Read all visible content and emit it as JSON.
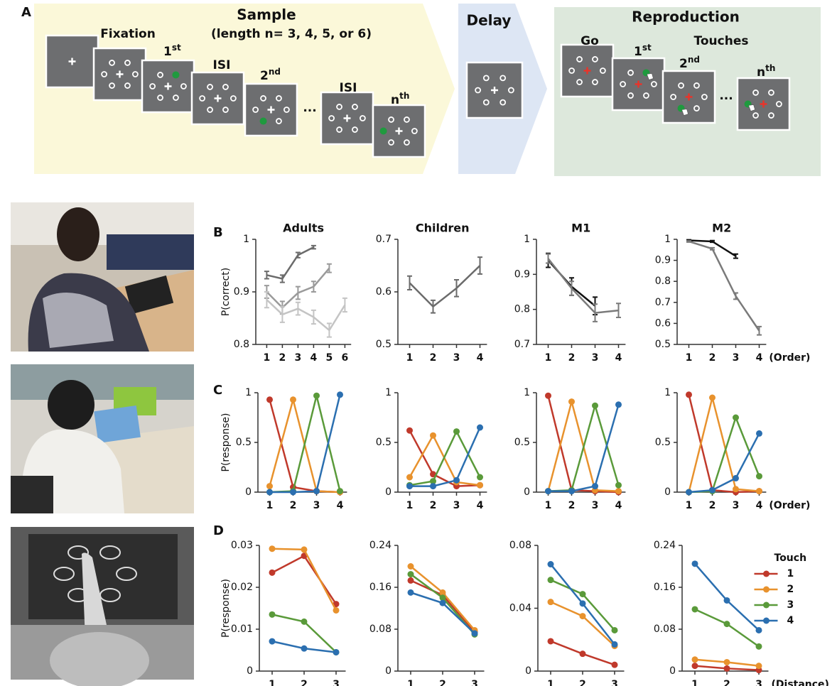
{
  "diagram": {
    "panel": "A",
    "sample": "Sample",
    "length": "(length n= 3, 4, 5, or 6)",
    "fixation": "Fixation",
    "first": {
      "base": "1",
      "sup": "st"
    },
    "isi": "ISI",
    "second": {
      "base": "2",
      "sup": "nd"
    },
    "ellipsis": "...",
    "nth": {
      "base": "n",
      "sup": "th"
    },
    "delay": "Delay",
    "reproduction": "Reproduction",
    "go": "Go",
    "touches": "Touches"
  },
  "panel_labels": [
    "B",
    "C",
    "D"
  ],
  "chart_data": [
    {
      "type": "line",
      "title": "Adults",
      "ylabel": "P(correct)",
      "x": [
        1,
        2,
        3,
        4,
        5,
        6
      ],
      "xlim": [
        0.3,
        6.4
      ],
      "xticks": [
        1,
        2,
        3,
        4,
        5,
        6
      ],
      "ylim": [
        0.8,
        1
      ],
      "yticks": [
        0.8,
        0.9,
        1
      ],
      "series": [
        {
          "color": "#6b6b6b",
          "values": [
            0.932,
            0.925,
            0.97,
            0.985,
            null,
            null
          ],
          "errors": [
            0.007,
            0.007,
            0.005,
            0.003,
            null,
            null
          ]
        },
        {
          "color": "#9a9a9a",
          "values": [
            0.9,
            0.87,
            0.898,
            0.91,
            0.945,
            null
          ],
          "errors": [
            0.012,
            0.012,
            0.012,
            0.01,
            0.008,
            null
          ]
        },
        {
          "color": "#c4c4c4",
          "values": [
            0.885,
            0.857,
            0.868,
            0.852,
            0.827,
            0.875
          ],
          "errors": [
            0.015,
            0.015,
            0.012,
            0.013,
            0.013,
            0.013
          ]
        }
      ]
    },
    {
      "type": "line",
      "title": "Children",
      "x": [
        1,
        2,
        3,
        4
      ],
      "xlim": [
        0.5,
        4.3
      ],
      "xticks": [
        1,
        2,
        3,
        4
      ],
      "ylim": [
        0.5,
        0.7
      ],
      "yticks": [
        0.5,
        0.6,
        0.7
      ],
      "series": [
        {
          "color": "#6b6b6b",
          "values": [
            0.617,
            0.572,
            0.607,
            0.65
          ],
          "errors": [
            0.013,
            0.012,
            0.016,
            0.016
          ]
        }
      ]
    },
    {
      "type": "line",
      "title": "M1",
      "x": [
        1,
        2,
        3,
        4
      ],
      "xlim": [
        0.5,
        4.3
      ],
      "xticks": [
        1,
        2,
        3,
        4
      ],
      "ylim": [
        0.7,
        1
      ],
      "yticks": [
        0.7,
        0.8,
        0.9,
        1
      ],
      "series": [
        {
          "color": "#111111",
          "values": [
            0.94,
            0.865,
            0.81,
            null
          ],
          "errors": [
            0.02,
            0.025,
            0.025,
            null
          ]
        },
        {
          "color": "#7a7a7a",
          "values": [
            0.945,
            0.86,
            0.79,
            0.797
          ],
          "errors": [
            0.013,
            0.02,
            0.025,
            0.02
          ]
        }
      ]
    },
    {
      "type": "line",
      "title": "M2",
      "xlabel": "(Order)",
      "x": [
        1,
        2,
        3,
        4
      ],
      "xlim": [
        0.5,
        4.3
      ],
      "xticks": [
        1,
        2,
        3,
        4
      ],
      "ylim": [
        0.5,
        1
      ],
      "yticks": [
        0.5,
        0.6,
        0.7,
        0.8,
        0.9,
        1
      ],
      "series": [
        {
          "color": "#111111",
          "values": [
            0.995,
            0.99,
            0.92,
            null
          ],
          "errors": [
            0.003,
            0.004,
            0.01,
            null
          ]
        },
        {
          "color": "#7a7a7a",
          "values": [
            0.99,
            0.955,
            0.73,
            0.565
          ],
          "errors": [
            0.003,
            0.005,
            0.015,
            0.02
          ]
        }
      ]
    },
    {
      "type": "line",
      "ylabel": "P(response)",
      "x": [
        1,
        2,
        3,
        4
      ],
      "xlim": [
        0.5,
        4.3
      ],
      "xticks": [
        1,
        2,
        3,
        4
      ],
      "ylim": [
        0,
        1
      ],
      "yticks": [
        0,
        0.5,
        1
      ],
      "markers": true,
      "series": [
        {
          "color": "#c0392b",
          "values": [
            0.93,
            0.05,
            0.01,
            0
          ]
        },
        {
          "color": "#e8922d",
          "values": [
            0.06,
            0.93,
            0.01,
            0
          ]
        },
        {
          "color": "#5a9a3a",
          "values": [
            0,
            0.01,
            0.97,
            0.01
          ]
        },
        {
          "color": "#2b6fb0",
          "values": [
            0,
            0,
            0.01,
            0.98
          ]
        }
      ]
    },
    {
      "type": "line",
      "x": [
        1,
        2,
        3,
        4
      ],
      "xlim": [
        0.5,
        4.3
      ],
      "xticks": [
        1,
        2,
        3,
        4
      ],
      "ylim": [
        0,
        1
      ],
      "yticks": [
        0,
        0.5,
        1
      ],
      "markers": true,
      "series": [
        {
          "color": "#c0392b",
          "values": [
            0.62,
            0.18,
            0.06,
            0.07
          ]
        },
        {
          "color": "#e8922d",
          "values": [
            0.15,
            0.57,
            0.1,
            0.07
          ]
        },
        {
          "color": "#5a9a3a",
          "values": [
            0.07,
            0.11,
            0.61,
            0.15
          ]
        },
        {
          "color": "#2b6fb0",
          "values": [
            0.06,
            0.06,
            0.12,
            0.65
          ]
        }
      ]
    },
    {
      "type": "line",
      "x": [
        1,
        2,
        3,
        4
      ],
      "xlim": [
        0.5,
        4.3
      ],
      "xticks": [
        1,
        2,
        3,
        4
      ],
      "ylim": [
        0,
        1
      ],
      "yticks": [
        0,
        0.5,
        1
      ],
      "markers": true,
      "series": [
        {
          "color": "#c0392b",
          "values": [
            0.97,
            0.02,
            0.01,
            0
          ]
        },
        {
          "color": "#e8922d",
          "values": [
            0.01,
            0.91,
            0.02,
            0.01
          ]
        },
        {
          "color": "#5a9a3a",
          "values": [
            0.01,
            0.02,
            0.87,
            0.07
          ]
        },
        {
          "color": "#2b6fb0",
          "values": [
            0.01,
            0.01,
            0.06,
            0.88
          ]
        }
      ]
    },
    {
      "type": "line",
      "xlabel": "(Order)",
      "x": [
        1,
        2,
        3,
        4
      ],
      "xlim": [
        0.5,
        4.3
      ],
      "xticks": [
        1,
        2,
        3,
        4
      ],
      "ylim": [
        0,
        1
      ],
      "yticks": [
        0,
        0.5,
        1
      ],
      "markers": true,
      "series": [
        {
          "color": "#c0392b",
          "values": [
            0.98,
            0.02,
            0,
            0.01
          ]
        },
        {
          "color": "#e8922d",
          "values": [
            0,
            0.95,
            0.03,
            0.01
          ]
        },
        {
          "color": "#5a9a3a",
          "values": [
            0,
            0.01,
            0.75,
            0.16
          ]
        },
        {
          "color": "#2b6fb0",
          "values": [
            0,
            0.02,
            0.14,
            0.59
          ]
        }
      ]
    },
    {
      "type": "line",
      "ylabel": "P(response)",
      "x": [
        1,
        2,
        3
      ],
      "xlim": [
        0.6,
        3.3
      ],
      "xticks": [
        1,
        2,
        3
      ],
      "ylim": [
        0,
        0.03
      ],
      "yticks": [
        0,
        0.01,
        0.02,
        0.03
      ],
      "markers": true,
      "series": [
        {
          "color": "#c0392b",
          "values": [
            0.0235,
            0.0275,
            0.016
          ]
        },
        {
          "color": "#e8922d",
          "values": [
            0.0292,
            0.029,
            0.0145
          ]
        },
        {
          "color": "#5a9a3a",
          "values": [
            0.0135,
            0.0118,
            0.0045
          ]
        },
        {
          "color": "#2b6fb0",
          "values": [
            0.0071,
            0.0054,
            0.0045
          ]
        }
      ]
    },
    {
      "type": "line",
      "x": [
        1,
        2,
        3
      ],
      "xlim": [
        0.6,
        3.3
      ],
      "xticks": [
        1,
        2,
        3
      ],
      "ylim": [
        0,
        0.24
      ],
      "yticks": [
        0,
        0.08,
        0.16,
        0.24
      ],
      "markers": true,
      "series": [
        {
          "color": "#c0392b",
          "values": [
            0.173,
            0.145,
            0.075
          ]
        },
        {
          "color": "#e8922d",
          "values": [
            0.2,
            0.15,
            0.078
          ]
        },
        {
          "color": "#5a9a3a",
          "values": [
            0.185,
            0.14,
            0.07
          ]
        },
        {
          "color": "#2b6fb0",
          "values": [
            0.15,
            0.13,
            0.072
          ]
        }
      ]
    },
    {
      "type": "line",
      "x": [
        1,
        2,
        3
      ],
      "xlim": [
        0.6,
        3.3
      ],
      "xticks": [
        1,
        2,
        3
      ],
      "ylim": [
        0,
        0.08
      ],
      "yticks": [
        0,
        0.04,
        0.08
      ],
      "markers": true,
      "series": [
        {
          "color": "#c0392b",
          "values": [
            0.019,
            0.011,
            0.004
          ]
        },
        {
          "color": "#e8922d",
          "values": [
            0.044,
            0.035,
            0.016
          ]
        },
        {
          "color": "#5a9a3a",
          "values": [
            0.058,
            0.049,
            0.026
          ]
        },
        {
          "color": "#2b6fb0",
          "values": [
            0.068,
            0.043,
            0.017
          ]
        }
      ]
    },
    {
      "type": "line",
      "xlabel": "(Distance)",
      "x": [
        1,
        2,
        3
      ],
      "xlim": [
        0.6,
        3.3
      ],
      "xticks": [
        1,
        2,
        3
      ],
      "ylim": [
        0,
        0.24
      ],
      "yticks": [
        0,
        0.08,
        0.16,
        0.24
      ],
      "markers": true,
      "legend": "right",
      "legend_title": "Touch",
      "series": [
        {
          "name": "1",
          "color": "#c0392b",
          "values": [
            0.01,
            0.005,
            0.002
          ]
        },
        {
          "name": "2",
          "color": "#e8922d",
          "values": [
            0.022,
            0.017,
            0.01
          ]
        },
        {
          "name": "3",
          "color": "#5a9a3a",
          "values": [
            0.118,
            0.09,
            0.047
          ]
        },
        {
          "name": "4",
          "color": "#2b6fb0",
          "values": [
            0.205,
            0.135,
            0.078
          ]
        }
      ]
    }
  ]
}
